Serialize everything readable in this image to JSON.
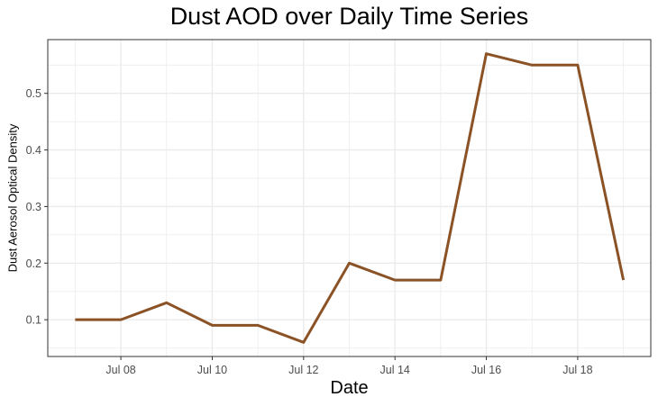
{
  "chart_data": {
    "type": "line",
    "title": "Dust AOD over Daily Time Series",
    "xlabel": "Date",
    "ylabel": "Dust Aerosol Optical Density",
    "x": [
      "Jul 07",
      "Jul 08",
      "Jul 09",
      "Jul 10",
      "Jul 11",
      "Jul 12",
      "Jul 13",
      "Jul 14",
      "Jul 15",
      "Jul 16",
      "Jul 17",
      "Jul 18",
      "Jul 19"
    ],
    "series": [
      {
        "values": [
          0.1,
          0.1,
          0.13,
          0.09,
          0.09,
          0.06,
          0.2,
          0.17,
          0.17,
          0.57,
          0.55,
          0.55,
          0.17
        ]
      }
    ],
    "x_ticks": [
      "Jul 08",
      "Jul 10",
      "Jul 12",
      "Jul 14",
      "Jul 16",
      "Jul 18"
    ],
    "y_ticks": [
      "0.1",
      "0.2",
      "0.3",
      "0.4",
      "0.5"
    ],
    "y_tick_values": [
      0.1,
      0.2,
      0.3,
      0.4,
      0.5
    ],
    "ylim": [
      0.035,
      0.595
    ],
    "grid": true,
    "line_color": "#8B5226",
    "gridline_color": "#EBEBEB",
    "panel_border_color": "#333333"
  }
}
